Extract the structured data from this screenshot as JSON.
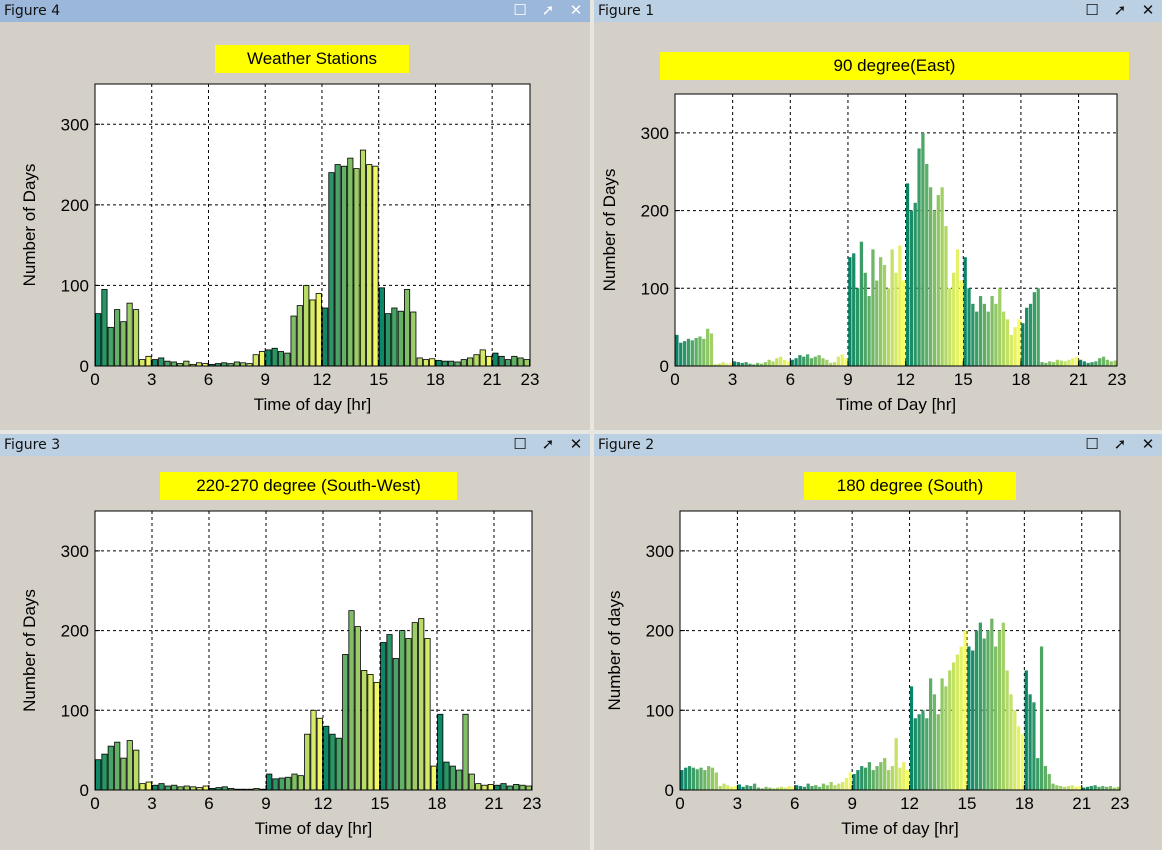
{
  "figures": [
    {
      "window_title": "Figure 4",
      "active": true
    },
    {
      "window_title": "Figure 1",
      "active": false
    },
    {
      "window_title": "Figure 3",
      "active": false
    },
    {
      "window_title": "Figure 2",
      "active": false
    }
  ],
  "window_buttons": {
    "maximize": "☐",
    "undock": "➚",
    "close": "✕"
  },
  "chart_data": [
    {
      "type": "bar",
      "title": "Weather Stations",
      "xlabel": "Time of day [hr]",
      "ylabel": "Number of Days",
      "xlim": [
        0,
        23
      ],
      "ylim": [
        0,
        350
      ],
      "xticks": [
        0,
        3,
        6,
        9,
        12,
        15,
        18,
        21,
        23
      ],
      "yticks": [
        0,
        100,
        200,
        300
      ],
      "grid": true,
      "colormap": "summer",
      "x": [
        0.17,
        0.5,
        0.83,
        1.17,
        1.5,
        1.83,
        2.17,
        2.5,
        2.83,
        3.17,
        3.5,
        3.83,
        4.17,
        4.5,
        4.83,
        5.17,
        5.5,
        5.83,
        6.17,
        6.5,
        6.83,
        7.17,
        7.5,
        7.83,
        8.17,
        8.5,
        8.83,
        9.17,
        9.5,
        9.83,
        10.17,
        10.5,
        10.83,
        11.17,
        11.5,
        11.83,
        12.17,
        12.5,
        12.83,
        13.17,
        13.5,
        13.83,
        14.17,
        14.5,
        14.83,
        15.17,
        15.5,
        15.83,
        16.17,
        16.5,
        16.83,
        17.17,
        17.5,
        17.83,
        18.17,
        18.5,
        18.83,
        19.17,
        19.5,
        19.83,
        20.17,
        20.5,
        20.83,
        21.17,
        21.5,
        21.83,
        22.17,
        22.5,
        22.83
      ],
      "values": [
        65,
        95,
        48,
        70,
        55,
        78,
        70,
        8,
        12,
        8,
        10,
        6,
        5,
        3,
        6,
        2,
        4,
        3,
        2,
        3,
        4,
        3,
        5,
        4,
        3,
        14,
        18,
        20,
        22,
        18,
        16,
        62,
        75,
        100,
        82,
        90,
        72,
        240,
        250,
        248,
        258,
        245,
        268,
        250,
        248,
        97,
        65,
        72,
        68,
        95,
        67,
        10,
        8,
        9,
        7,
        6,
        6,
        5,
        8,
        10,
        14,
        20,
        12,
        16,
        12,
        8,
        12,
        10,
        8
      ]
    },
    {
      "type": "bar",
      "title": "90 degree(East)",
      "xlabel": "Time of  Day [hr]",
      "ylabel": "Number of Days",
      "xlim": [
        0,
        23
      ],
      "ylim": [
        0,
        350
      ],
      "xticks": [
        0,
        3,
        6,
        9,
        12,
        15,
        18,
        21,
        23
      ],
      "yticks": [
        0,
        100,
        200,
        300
      ],
      "grid": true,
      "colormap": "summer",
      "x": [
        0.1,
        0.3,
        0.5,
        0.7,
        0.9,
        1.1,
        1.3,
        1.5,
        1.7,
        1.9,
        2.1,
        2.3,
        2.5,
        2.7,
        2.9,
        3.1,
        3.3,
        3.5,
        3.7,
        3.9,
        4.1,
        4.3,
        4.5,
        4.7,
        4.9,
        5.1,
        5.3,
        5.5,
        5.7,
        5.9,
        6.1,
        6.3,
        6.5,
        6.7,
        6.9,
        7.1,
        7.3,
        7.5,
        7.7,
        7.9,
        8.1,
        8.3,
        8.5,
        8.7,
        8.9,
        9.1,
        9.3,
        9.5,
        9.7,
        9.9,
        10.1,
        10.3,
        10.5,
        10.7,
        10.9,
        11.1,
        11.3,
        11.5,
        11.7,
        11.9,
        12.1,
        12.3,
        12.5,
        12.7,
        12.9,
        13.1,
        13.3,
        13.5,
        13.7,
        13.9,
        14.1,
        14.3,
        14.5,
        14.7,
        14.9,
        15.1,
        15.3,
        15.5,
        15.7,
        15.9,
        16.1,
        16.3,
        16.5,
        16.7,
        16.9,
        17.1,
        17.3,
        17.5,
        17.7,
        17.9,
        18.1,
        18.3,
        18.5,
        18.7,
        18.9,
        19.1,
        19.3,
        19.5,
        19.7,
        19.9,
        20.1,
        20.3,
        20.5,
        20.7,
        20.9,
        21.1,
        21.3,
        21.5,
        21.7,
        21.9,
        22.1,
        22.3,
        22.5,
        22.7,
        22.9
      ],
      "values": [
        40,
        30,
        32,
        35,
        33,
        36,
        38,
        35,
        48,
        42,
        2,
        3,
        5,
        3,
        4,
        6,
        5,
        4,
        5,
        3,
        2,
        4,
        3,
        5,
        8,
        6,
        10,
        12,
        8,
        6,
        8,
        10,
        14,
        12,
        15,
        10,
        12,
        14,
        10,
        8,
        4,
        5,
        12,
        15,
        10,
        140,
        145,
        100,
        160,
        120,
        90,
        150,
        110,
        140,
        130,
        100,
        150,
        120,
        155,
        110,
        235,
        200,
        210,
        280,
        300,
        260,
        230,
        200,
        220,
        230,
        180,
        100,
        120,
        150,
        110,
        140,
        100,
        80,
        70,
        90,
        80,
        70,
        90,
        80,
        100,
        70,
        60,
        40,
        50,
        60,
        55,
        75,
        80,
        95,
        100,
        5,
        4,
        6,
        5,
        8,
        7,
        6,
        8,
        10,
        12,
        8,
        6,
        4,
        5,
        6,
        10,
        12,
        8,
        6,
        7
      ]
    },
    {
      "type": "bar",
      "title": "220-270 degree (South-West)",
      "xlabel": "Time of day [hr]",
      "ylabel": "Number of Days",
      "xlim": [
        0,
        23
      ],
      "ylim": [
        0,
        350
      ],
      "xticks": [
        0,
        3,
        6,
        9,
        12,
        15,
        18,
        21,
        23
      ],
      "yticks": [
        0,
        100,
        200,
        300
      ],
      "grid": true,
      "colormap": "summer",
      "x": [
        0.17,
        0.5,
        0.83,
        1.17,
        1.5,
        1.83,
        2.17,
        2.5,
        2.83,
        3.17,
        3.5,
        3.83,
        4.17,
        4.5,
        4.83,
        5.17,
        5.5,
        5.83,
        6.17,
        6.5,
        6.83,
        7.17,
        7.5,
        7.83,
        8.17,
        8.5,
        8.83,
        9.17,
        9.5,
        9.83,
        10.17,
        10.5,
        10.83,
        11.17,
        11.5,
        11.83,
        12.17,
        12.5,
        12.83,
        13.17,
        13.5,
        13.83,
        14.17,
        14.5,
        14.83,
        15.17,
        15.5,
        15.83,
        16.17,
        16.5,
        16.83,
        17.17,
        17.5,
        17.83,
        18.17,
        18.5,
        18.83,
        19.17,
        19.5,
        19.83,
        20.17,
        20.5,
        20.83,
        21.17,
        21.5,
        21.83,
        22.17,
        22.5,
        22.83
      ],
      "values": [
        38,
        45,
        55,
        60,
        40,
        62,
        50,
        8,
        10,
        6,
        8,
        5,
        6,
        4,
        5,
        4,
        3,
        5,
        2,
        3,
        4,
        2,
        1,
        1,
        1,
        2,
        1,
        20,
        14,
        15,
        16,
        20,
        18,
        70,
        100,
        90,
        80,
        70,
        65,
        170,
        225,
        205,
        150,
        145,
        135,
        185,
        195,
        165,
        200,
        190,
        210,
        215,
        190,
        30,
        95,
        35,
        30,
        25,
        95,
        20,
        8,
        6,
        7,
        6,
        8,
        5,
        7,
        6,
        5
      ]
    },
    {
      "type": "bar",
      "title": "180 degree (South)",
      "xlabel": "Time of day [hr]",
      "ylabel": "Number of days",
      "xlim": [
        0,
        23
      ],
      "ylim": [
        0,
        350
      ],
      "xticks": [
        0,
        3,
        6,
        9,
        12,
        15,
        18,
        21,
        23
      ],
      "yticks": [
        0,
        100,
        200,
        300
      ],
      "grid": true,
      "colormap": "summer",
      "x": [
        0.1,
        0.3,
        0.5,
        0.7,
        0.9,
        1.1,
        1.3,
        1.5,
        1.7,
        1.9,
        2.1,
        2.3,
        2.5,
        2.7,
        2.9,
        3.1,
        3.3,
        3.5,
        3.7,
        3.9,
        4.1,
        4.3,
        4.5,
        4.7,
        4.9,
        5.1,
        5.3,
        5.5,
        5.7,
        5.9,
        6.1,
        6.3,
        6.5,
        6.7,
        6.9,
        7.1,
        7.3,
        7.5,
        7.7,
        7.9,
        8.1,
        8.3,
        8.5,
        8.7,
        8.9,
        9.1,
        9.3,
        9.5,
        9.7,
        9.9,
        10.1,
        10.3,
        10.5,
        10.7,
        10.9,
        11.1,
        11.3,
        11.5,
        11.7,
        11.9,
        12.1,
        12.3,
        12.5,
        12.7,
        12.9,
        13.1,
        13.3,
        13.5,
        13.7,
        13.9,
        14.1,
        14.3,
        14.5,
        14.7,
        14.9,
        15.1,
        15.3,
        15.5,
        15.7,
        15.9,
        16.1,
        16.3,
        16.5,
        16.7,
        16.9,
        17.1,
        17.3,
        17.5,
        17.7,
        17.9,
        18.1,
        18.3,
        18.5,
        18.7,
        18.9,
        19.1,
        19.3,
        19.5,
        19.7,
        19.9,
        20.1,
        20.3,
        20.5,
        20.7,
        20.9,
        21.1,
        21.3,
        21.5,
        21.7,
        21.9,
        22.1,
        22.3,
        22.5,
        22.7,
        22.9
      ],
      "values": [
        25,
        28,
        30,
        28,
        26,
        28,
        25,
        30,
        28,
        22,
        5,
        8,
        6,
        4,
        5,
        7,
        4,
        6,
        5,
        8,
        3,
        2,
        4,
        3,
        2,
        3,
        4,
        3,
        5,
        4,
        6,
        5,
        4,
        8,
        5,
        6,
        4,
        8,
        6,
        10,
        6,
        8,
        10,
        15,
        22,
        20,
        25,
        30,
        28,
        35,
        25,
        30,
        35,
        40,
        25,
        30,
        65,
        28,
        35,
        25,
        130,
        90,
        95,
        100,
        90,
        140,
        120,
        95,
        140,
        130,
        150,
        160,
        170,
        180,
        200,
        180,
        175,
        200,
        210,
        190,
        200,
        215,
        180,
        200,
        210,
        150,
        120,
        100,
        80,
        70,
        150,
        120,
        110,
        40,
        180,
        30,
        20,
        8,
        6,
        5,
        4,
        5,
        6,
        4,
        5,
        3,
        4,
        5,
        6,
        4,
        5,
        4,
        5,
        3,
        4
      ]
    }
  ]
}
